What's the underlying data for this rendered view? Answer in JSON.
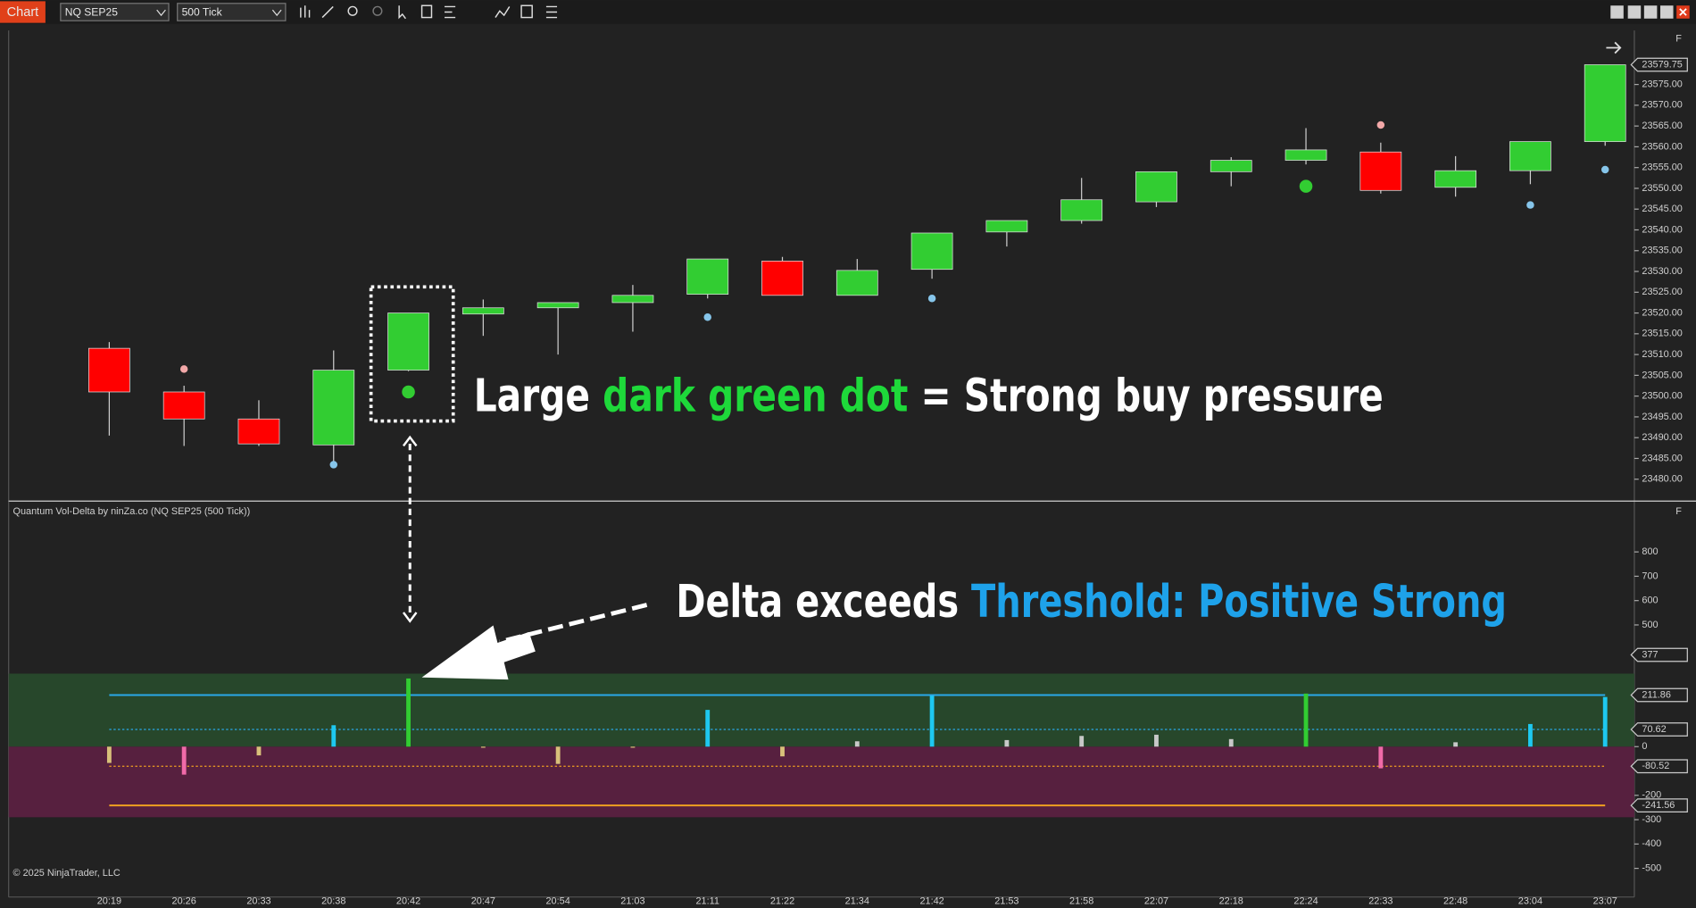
{
  "toolbar": {
    "tab": "Chart",
    "instrument": "NQ SEP25",
    "period": "500 Tick"
  },
  "price_panel": {
    "type": "candlestick",
    "x": [
      "20:19",
      "20:26",
      "20:33",
      "20:38",
      "20:42",
      "20:47",
      "20:54",
      "21:03",
      "21:11",
      "21:22",
      "21:34",
      "21:42",
      "21:53",
      "21:58",
      "22:07",
      "22:18",
      "22:24",
      "22:33",
      "22:48",
      "23:04",
      "23:07"
    ],
    "open": [
      23511.5,
      23501,
      23494.5,
      23488.25,
      23506.25,
      23519.75,
      23521.25,
      23522.5,
      23524.5,
      23532.5,
      23524.25,
      23530.5,
      23539.5,
      23542.25,
      23546.75,
      23554,
      23556.75,
      23558.75,
      23550.25,
      23554.25,
      23561.25
    ],
    "high": [
      23513,
      23502.5,
      23499,
      23511,
      23520,
      23523.25,
      23522.5,
      23526.75,
      23533,
      23533.5,
      23533,
      23539.25,
      23542.25,
      23552.5,
      23554,
      23557.5,
      23564.5,
      23561,
      23557.75,
      23561.25,
      23579.75
    ],
    "low": [
      23490.5,
      23488,
      23488,
      23483.5,
      23506,
      23514.5,
      23510,
      23515.5,
      23523.5,
      23524.25,
      23524.25,
      23528.25,
      23536,
      23541.5,
      23545.5,
      23550.5,
      23555.75,
      23548.75,
      23548,
      23551,
      23560.25
    ],
    "close": [
      23501,
      23494.5,
      23488.5,
      23506.25,
      23520,
      23521.25,
      23522.5,
      23524.25,
      23533,
      23524.25,
      23530.25,
      23539.25,
      23542.25,
      23547.25,
      23554,
      23556.75,
      23559.25,
      23549.5,
      23554.25,
      23561.25,
      23579.75
    ],
    "sell_dots": [
      null,
      23506.5,
      null,
      null,
      null,
      null,
      null,
      null,
      null,
      null,
      null,
      null,
      null,
      null,
      null,
      null,
      null,
      23565.25,
      null,
      null,
      null
    ],
    "buy_dots": [
      null,
      null,
      null,
      23483.5,
      null,
      null,
      null,
      null,
      23519,
      null,
      null,
      23523.5,
      null,
      null,
      null,
      null,
      null,
      null,
      null,
      23546,
      23554.5
    ],
    "strong_buy_dots": [
      null,
      null,
      null,
      null,
      23501,
      null,
      null,
      null,
      null,
      null,
      null,
      null,
      null,
      null,
      null,
      null,
      23550.5,
      null,
      null,
      null,
      null
    ],
    "up_color": "#32cd32",
    "down_color": "#ff0000",
    "ylim": [
      23475,
      23588
    ],
    "yticks": [
      {
        "value": 23575,
        "label": "23575.00"
      },
      {
        "value": 23570,
        "label": "23570.00"
      },
      {
        "value": 23565,
        "label": "23565.00"
      },
      {
        "value": 23560,
        "label": "23560.00"
      },
      {
        "value": 23555,
        "label": "23555.00"
      },
      {
        "value": 23550,
        "label": "23550.00"
      },
      {
        "value": 23545,
        "label": "23545.00"
      },
      {
        "value": 23540,
        "label": "23540.00"
      },
      {
        "value": 23535,
        "label": "23535.00"
      },
      {
        "value": 23530,
        "label": "23530.00"
      },
      {
        "value": 23525,
        "label": "23525.00"
      },
      {
        "value": 23520,
        "label": "23520.00"
      },
      {
        "value": 23515,
        "label": "23515.00"
      },
      {
        "value": 23510,
        "label": "23510.00"
      },
      {
        "value": 23505,
        "label": "23505.00"
      },
      {
        "value": 23500,
        "label": "23500.00"
      },
      {
        "value": 23495,
        "label": "23495.00"
      },
      {
        "value": 23490,
        "label": "23490.00"
      },
      {
        "value": 23485,
        "label": "23485.00"
      },
      {
        "value": 23480,
        "label": "23480.00"
      }
    ],
    "corner_label": "F"
  },
  "delta_panel": {
    "title": "Quantum Vol-Delta by ninZa.co (NQ SEP25 (500 Tick))",
    "bars": [
      -67,
      -115,
      -36,
      88,
      280,
      -3,
      -71,
      -4,
      151,
      -40,
      22,
      209,
      27,
      44,
      49,
      31,
      218,
      -89,
      18,
      93,
      204
    ],
    "bar_colors": [
      "#d8c07a",
      "#f06aa8",
      "#d8c07a",
      "#1ec8f0",
      "#32cd32",
      "#d8c07a",
      "#d8c07a",
      "#d8c07a",
      "#1ec8f0",
      "#d8c07a",
      "#c8c8c8",
      "#1ec8f0",
      "#c8c8c8",
      "#c8c8c8",
      "#c8c8c8",
      "#c8c8c8",
      "#32cd32",
      "#f06aa8",
      "#c8c8c8",
      "#1ec8f0",
      "#1ec8f0"
    ],
    "zone_top": 300,
    "zone_bottom": -290,
    "zone_colors": [
      "#27472b",
      "#57203f"
    ],
    "levels": [
      {
        "value": 211.86,
        "color": "#2aa8e8",
        "dash": false
      },
      {
        "value": 70.62,
        "color": "#2aa8e8",
        "dash": true
      },
      {
        "value": -80.52,
        "color": "#f0a020",
        "dash": true
      },
      {
        "value": -241.56,
        "color": "#f0a020",
        "dash": false
      }
    ],
    "last_value": 377,
    "ylim": [
      -620,
      1000
    ],
    "yticks": [
      800,
      700,
      600,
      500,
      0,
      -200,
      -300,
      -400,
      -500
    ],
    "corner_label": "F",
    "copyright": "© 2025 NinjaTrader, LLC"
  },
  "annotations": {
    "top": [
      "Large ",
      "dark green dot",
      " = Strong buy pressure"
    ],
    "bottom": [
      "Delta exceeds ",
      "Threshold: Positive Strong"
    ]
  }
}
